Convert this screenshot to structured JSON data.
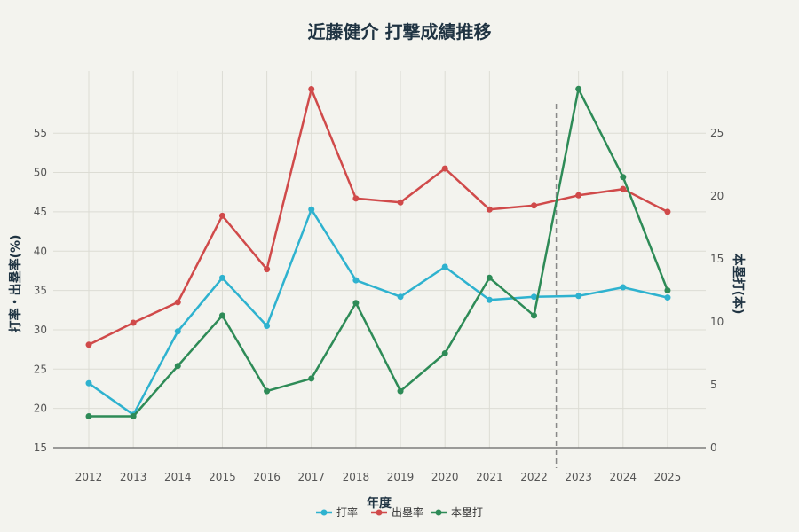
{
  "chart_data": {
    "type": "line",
    "title": "近藤健介 打撃成績推移",
    "xlabel": "年度",
    "ylabel_left": "打率・出塁率(%)",
    "ylabel_right": "本塁打(本)",
    "categories": [
      "2012",
      "2013",
      "2014",
      "2015",
      "2016",
      "2017",
      "2018",
      "2019",
      "2020",
      "2021",
      "2022",
      "2023",
      "2024",
      "2025"
    ],
    "y_left": {
      "range": [
        15,
        61
      ],
      "ticks": [
        15,
        20,
        25,
        30,
        35,
        40,
        45,
        50,
        55
      ]
    },
    "y_right": {
      "range": [
        0,
        28.5
      ],
      "ticks": [
        0,
        5,
        10,
        15,
        20,
        25
      ]
    },
    "series": [
      {
        "name": "打率",
        "axis": "left",
        "color": "#2eb2cf",
        "values": [
          23.2,
          19.2,
          29.8,
          36.6,
          30.5,
          45.3,
          36.3,
          34.2,
          38.0,
          33.8,
          34.2,
          34.3,
          35.4,
          34.1
        ]
      },
      {
        "name": "出塁率",
        "axis": "left",
        "color": "#d04a4a",
        "values": [
          28.1,
          30.9,
          33.5,
          44.5,
          37.7,
          60.6,
          46.7,
          46.2,
          50.5,
          45.3,
          45.8,
          47.1,
          47.9,
          45.0
        ]
      },
      {
        "name": "本塁打",
        "axis": "right",
        "color": "#2e8b57",
        "values": [
          2.5,
          2.5,
          6.5,
          10.5,
          4.5,
          5.5,
          11.5,
          4.5,
          7.5,
          13.5,
          10.5,
          28.5,
          21.5,
          12.5
        ]
      }
    ],
    "reference_line": {
      "x_between": [
        "2022",
        "2023"
      ],
      "style": "dashed"
    },
    "grid": true,
    "legend_position": "bottom-center"
  }
}
